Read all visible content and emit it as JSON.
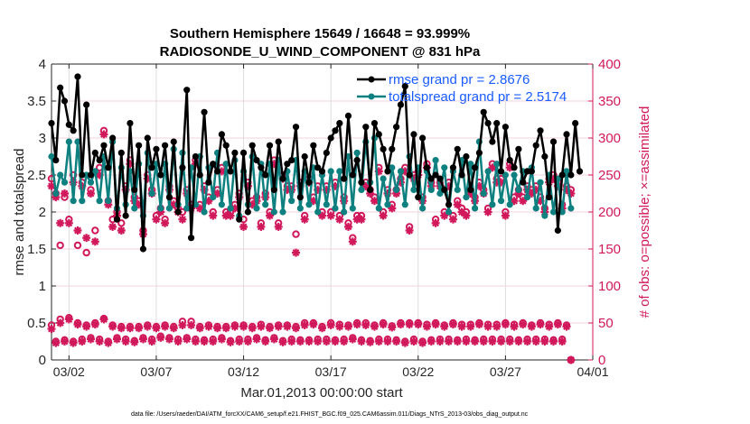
{
  "chart_data": {
    "type": "line",
    "title": [
      "Southern Hemisphere 15649 / 16648 = 93.999%",
      "RADIOSONDE_U_WIND_COMPONENT @ 831 hPa"
    ],
    "xlabel": "Mar.01,2013 00:00:00 start",
    "ylabel_left": "rmse and totalspread",
    "ylabel_right": "# of obs: o=possible; ×=assimilated",
    "ylim_left": [
      0,
      4
    ],
    "ylim_right": [
      0,
      400
    ],
    "xlim_days": [
      0,
      31
    ],
    "y_ticks_left": [
      "0",
      "0.5",
      "1",
      "1.5",
      "2",
      "2.5",
      "3",
      "3.5",
      "4"
    ],
    "y_ticks_right": [
      "0",
      "50",
      "100",
      "150",
      "200",
      "250",
      "300",
      "350",
      "400"
    ],
    "x_ticks": [
      {
        "day": 1,
        "label": "03/02"
      },
      {
        "day": 6,
        "label": "03/07"
      },
      {
        "day": 11,
        "label": "03/12"
      },
      {
        "day": 16,
        "label": "03/17"
      },
      {
        "day": 21,
        "label": "03/22"
      },
      {
        "day": 26,
        "label": "03/27"
      },
      {
        "day": 31,
        "label": "04/01"
      }
    ],
    "grid": true,
    "legend_placement": "top-right",
    "time_step_hours": 6,
    "series": [
      {
        "name": "rmse grand pr = 2.8676",
        "axis": "left",
        "color": "#000000",
        "values": [
          3.2,
          2.7,
          3.68,
          3.5,
          3.18,
          3.1,
          3.83,
          2.5,
          3.45,
          2.5,
          2.8,
          2.7,
          2.9,
          2.6,
          3.0,
          1.9,
          2.8,
          1.95,
          3.2,
          2.3,
          2.9,
          1.5,
          3.0,
          2.6,
          2.85,
          2.5,
          2.9,
          2.2,
          2.95,
          2.0,
          2.6,
          3.65,
          1.65,
          2.75,
          2.5,
          3.35,
          2.4,
          2.65,
          2.55,
          3.05,
          2.9,
          2.55,
          2.8,
          1.9,
          2.8,
          2.0,
          2.9,
          2.7,
          2.6,
          2.5,
          2.9,
          2.3,
          2.95,
          2.45,
          2.65,
          2.7,
          3.15,
          2.2,
          2.75,
          2.4,
          2.9,
          2.6,
          2.55,
          2.8,
          3.0,
          3.1,
          3.2,
          2.45,
          3.3,
          2.5,
          2.7,
          2.4,
          3.15,
          2.3,
          3.2,
          3.05,
          2.85,
          2.55,
          2.85,
          3.15,
          3.45,
          3.7,
          2.5,
          3.05,
          2.2,
          3.0,
          2.6,
          2.45,
          2.5,
          2.45,
          2.3,
          2.1,
          2.6,
          2.85,
          2.5,
          2.75,
          2.3,
          2.6,
          2.8,
          3.35,
          3.2,
          2.95,
          3.2,
          2.55,
          3.15,
          2.7,
          2.6,
          2.85,
          2.4,
          2.55,
          2.55,
          2.9,
          3.1,
          2.75,
          2.2,
          2.95,
          1.75,
          2.5,
          3.05,
          2.5,
          3.2,
          2.55
        ],
        "grand_pr": 2.8676
      },
      {
        "name": "totalspread grand pr = 2.5174",
        "axis": "left",
        "color": "#0e8080",
        "values": [
          2.75,
          2.25,
          2.5,
          2.4,
          2.95,
          2.15,
          2.95,
          2.15,
          2.5,
          2.4,
          2.55,
          2.15,
          2.75,
          2.15,
          2.95,
          2.05,
          2.6,
          2.1,
          2.55,
          2.05,
          2.65,
          1.95,
          2.8,
          2.25,
          2.65,
          2.05,
          2.65,
          2.05,
          2.85,
          2.1,
          2.8,
          2.05,
          2.6,
          2.1,
          2.75,
          2.0,
          2.6,
          2.2,
          2.8,
          2.1,
          2.65,
          2.05,
          2.7,
          1.95,
          2.55,
          2.1,
          2.75,
          2.05,
          2.65,
          2.1,
          2.65,
          2.0,
          2.7,
          2.0,
          2.55,
          2.15,
          2.7,
          2.05,
          2.55,
          2.1,
          2.6,
          2.0,
          2.5,
          2.1,
          2.55,
          2.05,
          2.55,
          2.0,
          2.75,
          2.05,
          2.8,
          2.3,
          2.95,
          2.4,
          3.0,
          2.05,
          2.45,
          2.1,
          2.6,
          2.3,
          2.55,
          2.1,
          2.75,
          2.3,
          2.6,
          2.05,
          2.55,
          2.3,
          2.7,
          2.25,
          2.6,
          2.0,
          2.55,
          2.3,
          2.7,
          2.2,
          2.65,
          2.05,
          2.95,
          2.25,
          2.55,
          2.1,
          2.65,
          2.15,
          2.5,
          2.1,
          2.5,
          2.3,
          2.55,
          2.2,
          2.6,
          2.05,
          2.4,
          1.95,
          2.5,
          2.0,
          2.45,
          2.0,
          2.55,
          2.05
        ]
      },
      {
        "name": "obs possible",
        "axis": "right",
        "color": "#d0185a",
        "marker": "circle",
        "values": [
          245,
          225,
          155,
          220,
          190,
          250,
          155,
          240,
          145,
          230,
          175,
          260,
          310,
          215,
          190,
          200,
          185,
          235,
          270,
          220,
          215,
          175,
          250,
          230,
          195,
          205,
          190,
          235,
          215,
          205,
          200,
          230,
          210,
          270,
          210,
          235,
          220,
          200,
          230,
          260,
          200,
          200,
          210,
          225,
          190,
          240,
          215,
          220,
          185,
          225,
          200,
          270,
          185,
          250,
          235,
          235,
          170,
          240,
          195,
          245,
          220,
          235,
          200,
          235,
          200,
          240,
          195,
          220,
          185,
          165,
          195,
          195,
          240,
          230,
          220,
          260,
          200,
          230,
          210,
          230,
          245,
          260,
          180,
          250,
          255,
          220,
          265,
          240,
          190,
          240,
          200,
          240,
          195,
          215,
          205,
          200,
          230,
          220,
          240,
          230,
          205,
          265,
          245,
          245,
          200,
          265,
          220,
          230,
          220,
          235,
          230,
          235,
          220,
          205,
          245,
          250,
          240,
          210,
          235,
          230
        ]
      },
      {
        "name": "obs assimilated",
        "axis": "right",
        "color": "#d0185a",
        "marker": "star",
        "values": [
          235,
          220,
          185,
          225,
          185,
          240,
          175,
          235,
          165,
          225,
          160,
          250,
          305,
          210,
          180,
          195,
          175,
          230,
          265,
          215,
          210,
          170,
          245,
          225,
          190,
          200,
          185,
          230,
          210,
          200,
          190,
          225,
          205,
          265,
          205,
          230,
          215,
          195,
          225,
          255,
          195,
          195,
          205,
          220,
          180,
          235,
          210,
          215,
          180,
          220,
          195,
          265,
          180,
          245,
          230,
          230,
          145,
          235,
          190,
          240,
          215,
          230,
          195,
          230,
          195,
          235,
          190,
          215,
          180,
          160,
          190,
          190,
          235,
          225,
          215,
          255,
          195,
          225,
          205,
          225,
          240,
          255,
          175,
          245,
          250,
          215,
          260,
          235,
          185,
          235,
          195,
          235,
          190,
          210,
          200,
          195,
          225,
          215,
          235,
          225,
          200,
          260,
          240,
          240,
          195,
          260,
          215,
          225,
          215,
          230,
          225,
          230,
          215,
          200,
          240,
          245,
          235,
          205,
          230,
          225
        ]
      },
      {
        "name": "obs possible (low)",
        "axis": "right",
        "color": "#d0185a",
        "marker": "circle",
        "values": [
          47,
          25,
          55,
          27,
          57,
          25,
          50,
          28,
          47,
          30,
          50,
          28,
          56,
          25,
          47,
          30,
          45,
          28,
          45,
          26,
          45,
          30,
          47,
          28,
          45,
          32,
          47,
          30,
          45,
          28,
          52,
          30,
          52,
          28,
          45,
          27,
          47,
          28,
          45,
          30,
          45,
          26,
          47,
          28,
          47,
          28,
          45,
          30,
          48,
          27,
          45,
          30,
          47,
          26,
          47,
          28,
          45,
          27,
          50,
          27,
          50,
          28,
          45,
          28,
          50,
          27,
          48,
          28,
          47,
          30,
          50,
          27,
          50,
          26,
          47,
          28,
          50,
          28,
          46,
          27,
          50,
          25,
          50,
          28,
          50,
          25,
          48,
          27,
          50,
          28,
          47,
          28,
          50,
          27,
          48,
          28,
          48,
          27,
          50,
          28,
          48,
          28,
          48,
          28,
          50,
          28,
          48,
          27,
          50,
          28,
          47,
          28,
          50,
          28,
          48,
          27,
          50,
          28,
          47,
          0
        ]
      },
      {
        "name": "obs assimilated (low)",
        "axis": "right",
        "color": "#d0185a",
        "marker": "star",
        "values": [
          42,
          23,
          50,
          25,
          55,
          23,
          48,
          25,
          45,
          28,
          48,
          25,
          55,
          23,
          45,
          28,
          43,
          25,
          43,
          24,
          43,
          28,
          45,
          25,
          43,
          30,
          45,
          28,
          43,
          25,
          47,
          28,
          47,
          25,
          43,
          25,
          45,
          25,
          43,
          28,
          43,
          24,
          45,
          25,
          45,
          25,
          43,
          28,
          45,
          25,
          43,
          28,
          45,
          24,
          45,
          25,
          43,
          25,
          47,
          25,
          48,
          25,
          43,
          25,
          47,
          25,
          45,
          25,
          45,
          28,
          48,
          25,
          47,
          24,
          45,
          25,
          48,
          25,
          44,
          25,
          48,
          23,
          48,
          25,
          48,
          23,
          45,
          25,
          48,
          25,
          45,
          25,
          48,
          25,
          45,
          25,
          45,
          25,
          48,
          25,
          45,
          25,
          45,
          25,
          48,
          25,
          45,
          25,
          48,
          25,
          45,
          25,
          48,
          25,
          45,
          25,
          48,
          25,
          45,
          0
        ]
      }
    ],
    "legend": [
      {
        "label": "rmse grand pr = 2.8676",
        "color": "#000000"
      },
      {
        "label": "totalspread grand pr = 2.5174",
        "color": "#0e8080"
      }
    ],
    "footnote": "data file: /Users/raeder/DAI/ATM_forcXX/CAM6_setup/f.e21.FHIST_BGC.f09_025.CAM6assim.011/Diags_NTrS_2013-03/obs_diag_output.nc"
  }
}
